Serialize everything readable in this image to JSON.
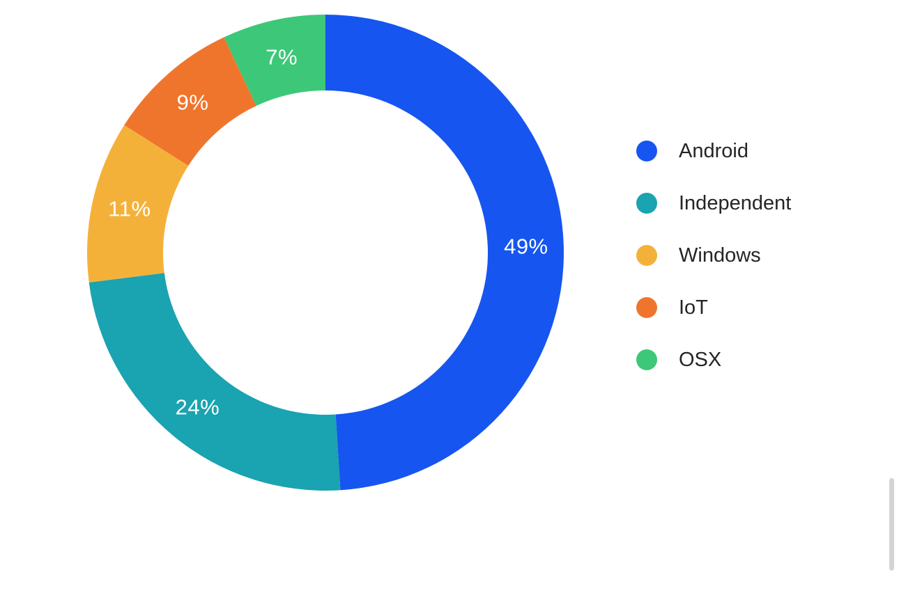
{
  "chart_data": {
    "type": "pie",
    "subtype": "donut",
    "title": "",
    "categories": [
      "Android",
      "Independent",
      "Windows",
      "IoT",
      "OSX"
    ],
    "values": [
      49,
      24,
      11,
      9,
      7
    ],
    "slice_labels": [
      "49%",
      "24%",
      "11%",
      "9%",
      "7%"
    ],
    "colors": [
      "#1655F0",
      "#1AA3B0",
      "#F4B13A",
      "#F0752C",
      "#3CC878"
    ],
    "start_angle_deg": 0,
    "direction": "clockwise",
    "donut_hole": true,
    "inner_radius_ratio": 0.68,
    "slice_label_color": "#FFFFFF",
    "legend_position": "right",
    "grid": false
  },
  "legend": {
    "items": [
      {
        "label": "Android",
        "color": "#1655F0"
      },
      {
        "label": "Independent",
        "color": "#1AA3B0"
      },
      {
        "label": "Windows",
        "color": "#F4B13A"
      },
      {
        "label": "IoT",
        "color": "#F0752C"
      },
      {
        "label": "OSX",
        "color": "#3CC878"
      }
    ]
  }
}
